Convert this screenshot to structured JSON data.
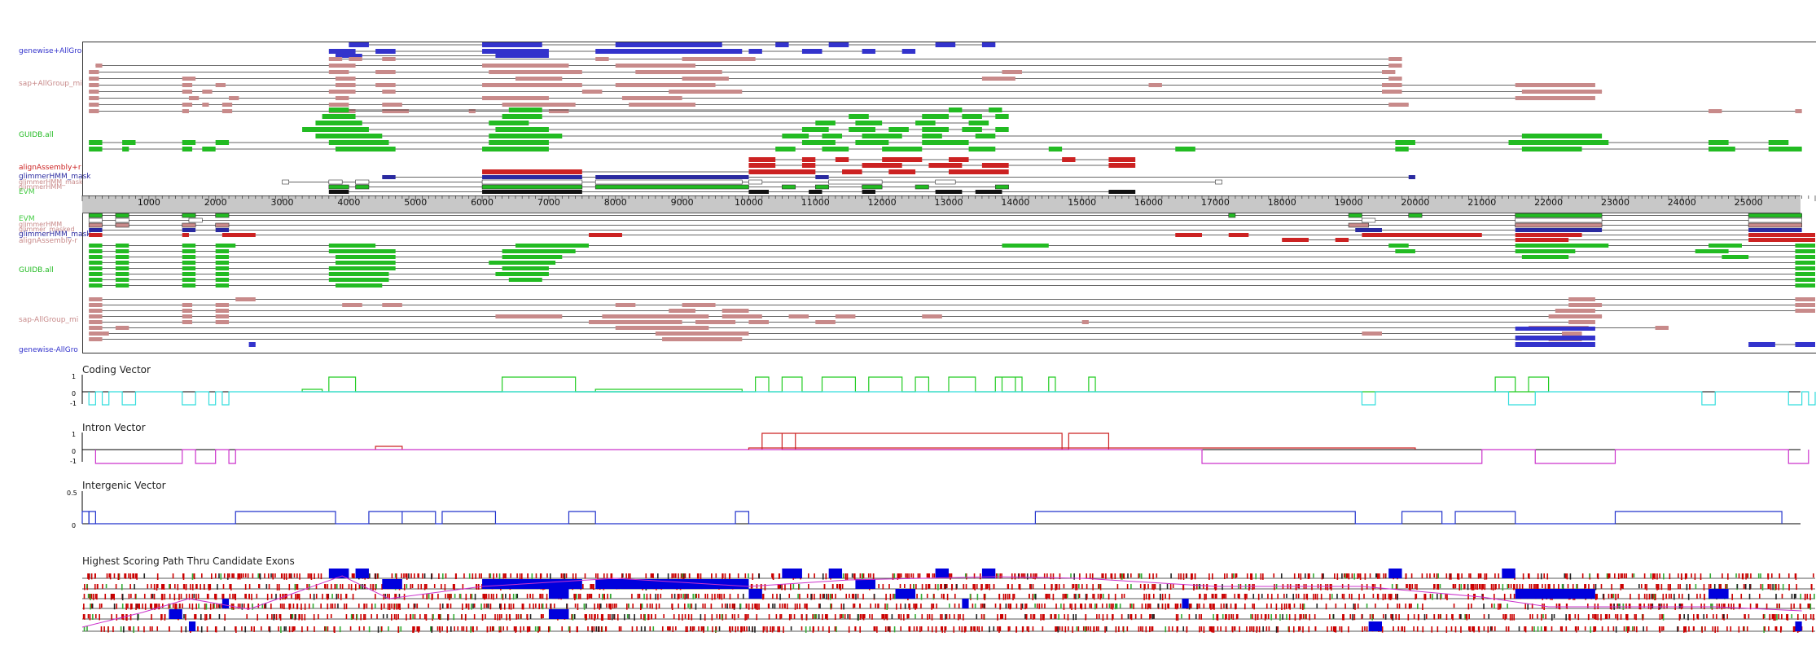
{
  "colors": {
    "genewise": "#3333cc",
    "sap": "#c88a8a",
    "glimmer": "#2a2aa0",
    "gene_id": "#22bb22",
    "align": "#cc2222",
    "evm": "#44cc44",
    "coding_pos": "#22cc22",
    "coding_neg": "#33dddd",
    "intron_pos": "#cc2222",
    "intron_neg": "#cc33cc",
    "intergenic": "#2233cc",
    "path_blue": "#0000dd",
    "path_red": "#cc0000"
  },
  "forward_track_labels": [
    {
      "key": "genewise",
      "text": "genewise+AllGro"
    },
    {
      "key": "sap",
      "text": "sap+AllGroup_mi"
    },
    {
      "key": "gene_id",
      "text": "GUIDB.all"
    },
    {
      "key": "align",
      "text": "alignAssembly+r"
    },
    {
      "key": "glimmer",
      "text": "glimmerHMM_mask"
    },
    {
      "key": "sap",
      "text": "glimmerHMM_mask"
    },
    {
      "key": "sap",
      "text": "glimmerHMM"
    },
    {
      "key": "evm",
      "text": "EVM"
    }
  ],
  "reverse_track_labels": [
    {
      "key": "evm",
      "text": "EVM"
    },
    {
      "key": "sap",
      "text": "glimmerHMM"
    },
    {
      "key": "sap",
      "text": "glimmer_masked"
    },
    {
      "key": "glimmer",
      "text": "glimmerHMM_mask"
    },
    {
      "key": "sap",
      "text": "alignAssembly-r"
    },
    {
      "key": "gene_id",
      "text": "GUIDB.all"
    },
    {
      "key": "sap",
      "text": "sap-AllGroup_mi"
    },
    {
      "key": "genewise",
      "text": "genewise-AllGro"
    }
  ],
  "axis_ticks": [
    "1000",
    "2000",
    "3000",
    "4000",
    "5000",
    "6000",
    "7000",
    "8000",
    "9000",
    "10000",
    "11000",
    "12000",
    "13000",
    "14000",
    "15000",
    "16000",
    "17000",
    "18000",
    "19000",
    "20000",
    "21000",
    "22000",
    "23000",
    "24000",
    "25000"
  ],
  "coding_vector": {
    "title": "Coding Vector",
    "y_ticks": [
      "1",
      "0",
      "-1"
    ]
  },
  "intron_vector": {
    "title": "Intron Vector",
    "y_ticks": [
      "1",
      "0",
      "-1"
    ]
  },
  "intergenic_vector": {
    "title": "Intergenic Vector",
    "y_ticks": [
      "0.5",
      "0"
    ]
  },
  "path_panel": {
    "title": "Highest Scoring Path Thru Candidate Exons"
  }
}
